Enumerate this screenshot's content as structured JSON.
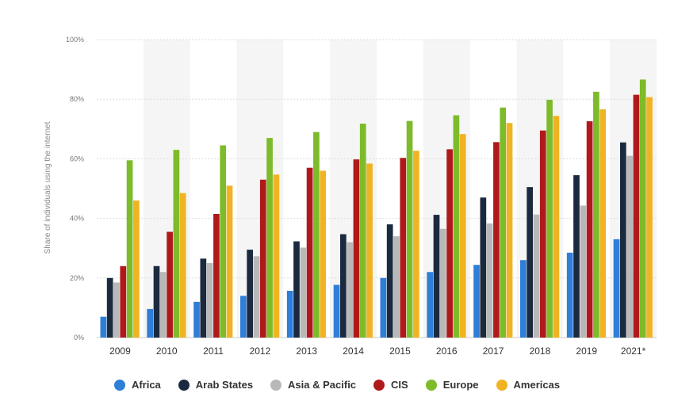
{
  "chart_data": {
    "type": "bar",
    "ylabel": "Share of individuals using the internet",
    "ylim": [
      0,
      100
    ],
    "y_ticks": [
      "0%",
      "20%",
      "40%",
      "60%",
      "80%",
      "100%"
    ],
    "categories": [
      "2009",
      "2010",
      "2011",
      "2012",
      "2013",
      "2014",
      "2015",
      "2016",
      "2017",
      "2018",
      "2019",
      "2021*"
    ],
    "legend_position": "bottom-center",
    "grid": true,
    "series": [
      {
        "name": "Africa",
        "color": "#2f7ed8",
        "values": [
          7,
          9.6,
          12,
          14,
          15.7,
          17.7,
          20,
          22,
          24.4,
          26,
          28.5,
          33
        ]
      },
      {
        "name": "Arab States",
        "color": "#1b2a3f",
        "values": [
          20,
          24,
          26.5,
          29.5,
          32.3,
          34.7,
          38,
          41.2,
          47,
          50.5,
          54.5,
          65.5
        ]
      },
      {
        "name": "Asia & Pacific",
        "color": "#b8b8b8",
        "values": [
          18.5,
          22,
          25,
          27.3,
          30.2,
          32,
          34,
          36.5,
          38.3,
          41.3,
          44.3,
          61
        ]
      },
      {
        "name": "CIS",
        "color": "#b0191c",
        "values": [
          24,
          35.5,
          41.5,
          53,
          57,
          59.8,
          60.3,
          63.2,
          65.6,
          69.5,
          72.6,
          81.5
        ]
      },
      {
        "name": "Europe",
        "color": "#7dbb2a",
        "values": [
          59.5,
          63,
          64.5,
          67,
          69,
          71.8,
          72.7,
          74.6,
          77.2,
          79.8,
          82.5,
          86.6
        ]
      },
      {
        "name": "Americas",
        "color": "#f0b323",
        "values": [
          46,
          48.5,
          51,
          54.7,
          56,
          58.4,
          62.7,
          68.3,
          72,
          74.4,
          76.6,
          80.7
        ]
      }
    ]
  }
}
